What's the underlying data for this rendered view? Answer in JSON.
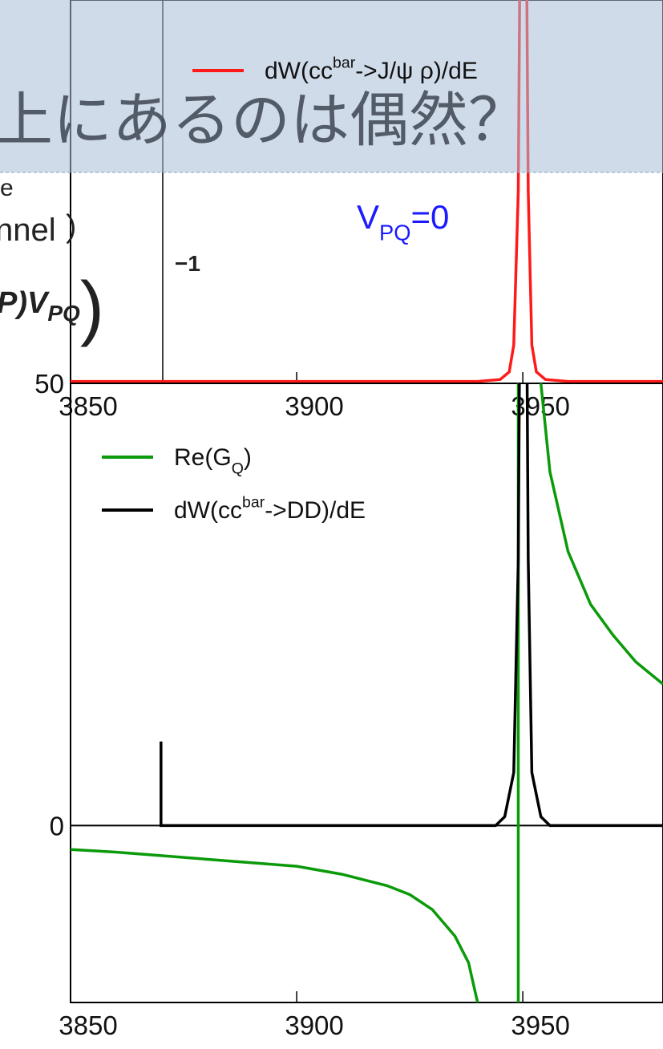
{
  "slide": {
    "title": "上にあるのは偶然？",
    "fragments": [
      "e",
      "nnel ）",
      "P)",
      "V",
      "PQ",
      ")",
      "−1"
    ]
  },
  "chart_data": [
    {
      "type": "line",
      "xlim": [
        3850,
        3981
      ],
      "xticks": [
        3850,
        3900,
        3950
      ],
      "ylim": [
        0,
        1
      ],
      "annotation": [
        "V",
        "PQ",
        "=0"
      ],
      "annotation_color": "#1a1aff",
      "series": [
        {
          "name": [
            "dW(cc",
            "bar",
            "->J/ψ ρ)/dE"
          ],
          "name_shift": "sup",
          "color": "#ff1a1a",
          "x": [
            3850,
            3940,
            3945,
            3947,
            3948,
            3949,
            3949.6,
            3950.6,
            3951.2,
            3952,
            3953,
            3955,
            3960,
            3981
          ],
          "values": [
            0.005,
            0.005,
            0.01,
            0.03,
            0.1,
            0.5,
            1.5,
            1.5,
            0.5,
            0.1,
            0.03,
            0.01,
            0.005,
            0.005
          ]
        }
      ]
    },
    {
      "type": "line",
      "xlim": [
        3850,
        3981
      ],
      "xticks": [
        3850,
        3900,
        3950
      ],
      "ylim": [
        -20,
        50
      ],
      "yticks": [
        0,
        50
      ],
      "series": [
        {
          "name": [
            "Re(G",
            "Q",
            ")"
          ],
          "name_shift": "sub",
          "color": "#0a9a0a",
          "x": [
            3850,
            3860,
            3870,
            3880,
            3890,
            3900,
            3910,
            3920,
            3925,
            3930,
            3935,
            3938,
            3940,
            3945,
            3949,
            3949,
            3952,
            3954,
            3956,
            3960,
            3965,
            3970,
            3975,
            3981
          ],
          "values": [
            -2.7,
            -3,
            -3.4,
            -3.8,
            -4.2,
            -4.6,
            -5.5,
            -6.8,
            -7.8,
            -9.5,
            -12.5,
            -15.5,
            -20,
            null,
            -20,
            50,
            null,
            50,
            40,
            31,
            25,
            21.5,
            18.5,
            16
          ]
        },
        {
          "name": [
            "dW(cc",
            "bar",
            "->DD)/dE"
          ],
          "name_shift": "sup",
          "color": "#000000",
          "x": [
            3870,
            3870,
            3944,
            3946,
            3948,
            3949,
            3949.6,
            3950.6,
            3951.2,
            3952,
            3954,
            3956,
            3981
          ],
          "values": [
            9.5,
            0,
            0,
            1,
            6,
            30,
            80,
            80,
            30,
            6,
            1,
            0,
            0
          ]
        }
      ]
    }
  ]
}
